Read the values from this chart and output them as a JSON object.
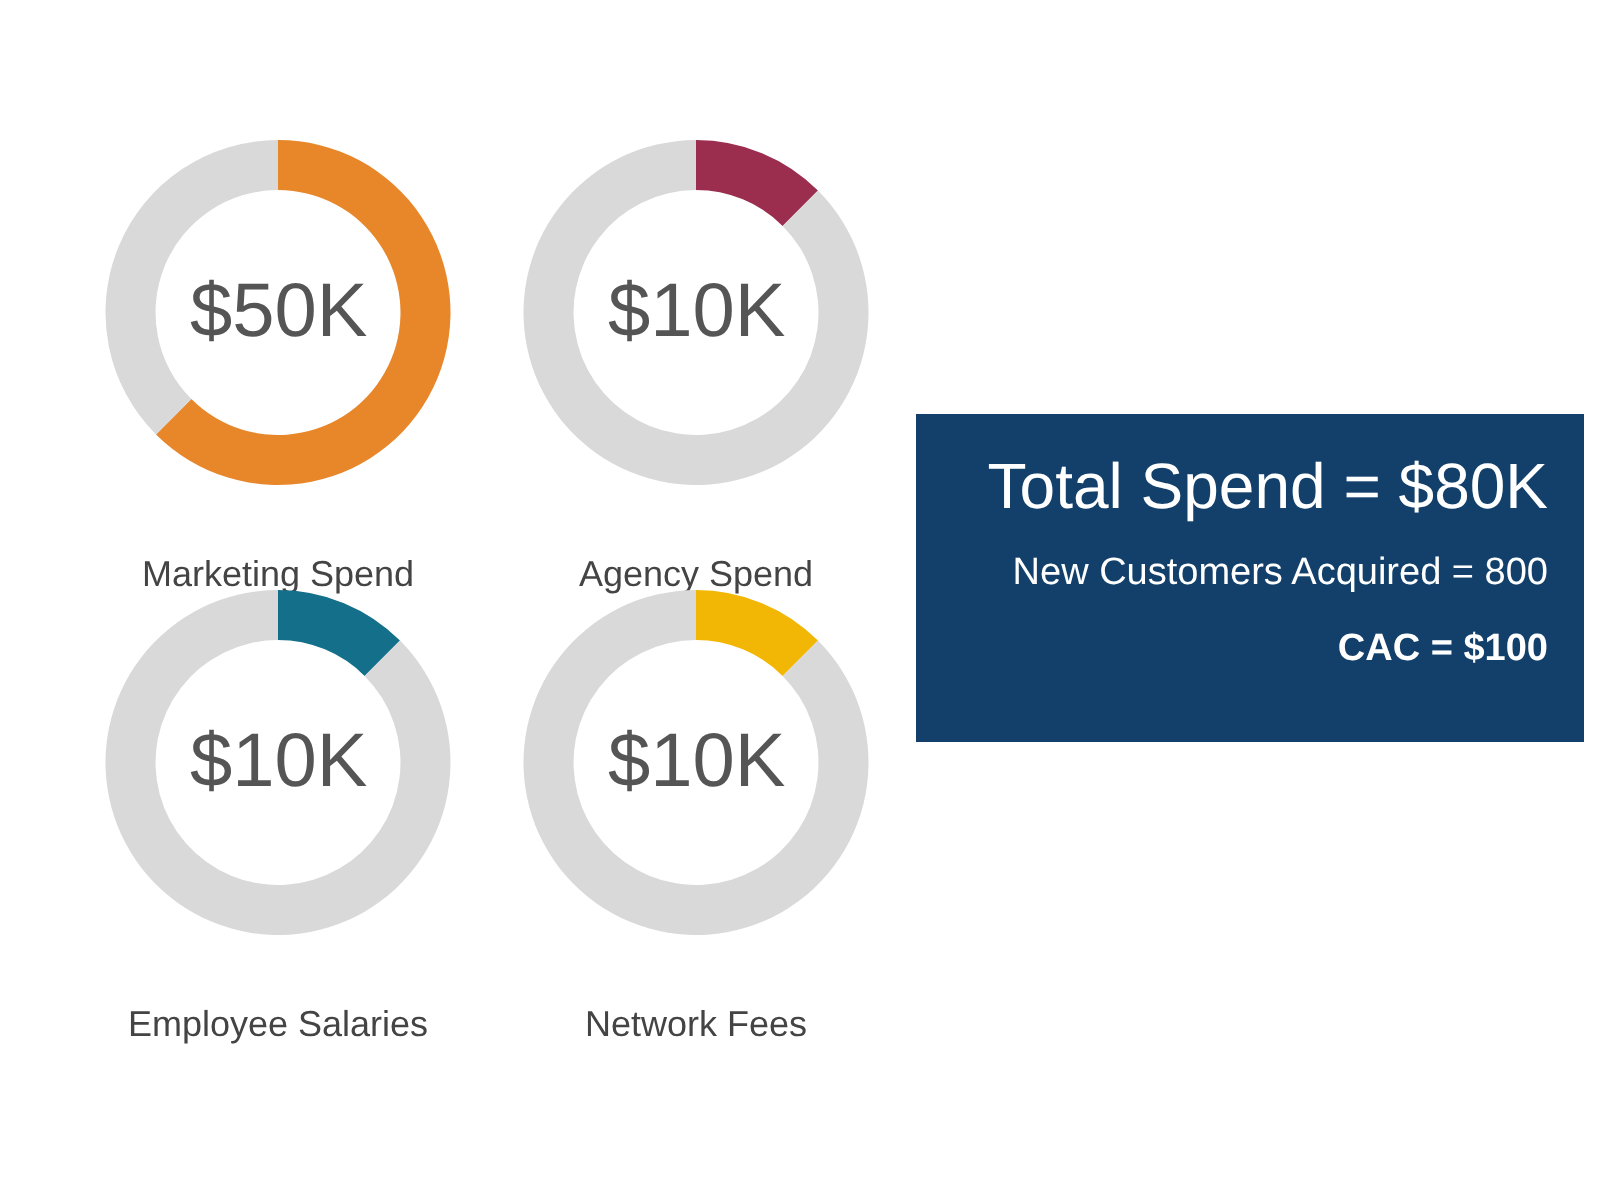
{
  "chart_data": [
    {
      "type": "donut",
      "title": "Marketing Spend",
      "annotations": [
        "$50K"
      ],
      "categories": [
        null,
        null
      ],
      "values": [
        62.5,
        37.5
      ],
      "colors": [
        "#e8862a",
        "#d9d9d9"
      ]
    },
    {
      "type": "donut",
      "title": "Agency Spend",
      "annotations": [
        "$10K"
      ],
      "categories": [
        null,
        null
      ],
      "values": [
        12.5,
        87.5
      ],
      "colors": [
        "#9b2d4f",
        "#d9d9d9"
      ]
    },
    {
      "type": "donut",
      "title": "Employee Salaries",
      "annotations": [
        "$10K"
      ],
      "categories": [
        null,
        null
      ],
      "values": [
        12.5,
        87.5
      ],
      "colors": [
        "#136f8a",
        "#d9d9d9"
      ]
    },
    {
      "type": "donut",
      "title": "Network Fees",
      "annotations": [
        "$10K"
      ],
      "categories": [
        null,
        null
      ],
      "values": [
        12.5,
        87.5
      ],
      "colors": [
        "#f2b705",
        "#d9d9d9"
      ]
    },
    {
      "type": "other",
      "title": "Total Spend = $80K",
      "annotations": [
        "New Customers Acquired = 800",
        "CAC = $100"
      ]
    }
  ]
}
